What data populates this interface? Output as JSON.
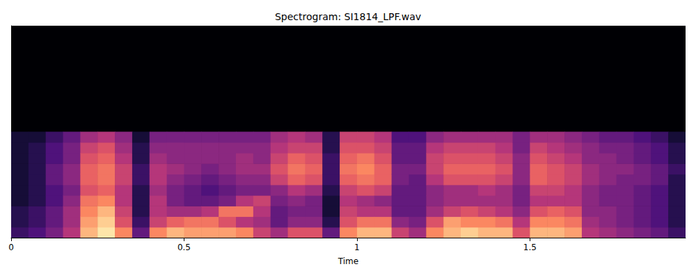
{
  "chart_data": {
    "type": "heatmap",
    "title": "Spectrogram: SI1814_LPF.wav",
    "xlabel": "Time",
    "x": [
      0,
      0.05,
      0.1,
      0.15,
      0.2,
      0.25,
      0.3,
      0.35,
      0.4,
      0.45,
      0.5,
      0.55,
      0.6,
      0.65,
      0.7,
      0.75,
      0.8,
      0.85,
      0.9,
      0.95,
      1,
      1.05,
      1.1,
      1.15,
      1.2,
      1.25,
      1.3,
      1.35,
      1.4,
      1.45,
      1.5,
      1.55,
      1.6,
      1.65,
      1.7,
      1.75,
      1.8,
      1.85,
      1.9,
      1.95
    ],
    "y": [
      0,
      1,
      2,
      3,
      4,
      5,
      6,
      7,
      8,
      9,
      10
    ],
    "z": [
      [
        0.2,
        0.15,
        0.15,
        0.1,
        0.1,
        0.1,
        0.1,
        0.1,
        0.1,
        0.1
      ],
      [
        0.25,
        0.2,
        0.2,
        0.15,
        0.15,
        0.15,
        0.15,
        0.15,
        0.15,
        0.1
      ],
      [
        0.35,
        0.3,
        0.3,
        0.25,
        0.25,
        0.3,
        0.3,
        0.25,
        0.25,
        0.2
      ],
      [
        0.5,
        0.45,
        0.45,
        0.4,
        0.35,
        0.4,
        0.4,
        0.35,
        0.35,
        0.3
      ],
      [
        0.85,
        0.8,
        0.75,
        0.7,
        0.6,
        0.65,
        0.65,
        0.6,
        0.55,
        0.45
      ],
      [
        0.95,
        0.9,
        0.85,
        0.75,
        0.65,
        0.7,
        0.7,
        0.65,
        0.6,
        0.5
      ],
      [
        0.75,
        0.6,
        0.55,
        0.5,
        0.5,
        0.55,
        0.55,
        0.5,
        0.45,
        0.4
      ],
      [
        0.3,
        0.2,
        0.15,
        0.15,
        0.15,
        0.2,
        0.2,
        0.15,
        0.15,
        0.1
      ],
      [
        0.75,
        0.55,
        0.5,
        0.5,
        0.45,
        0.5,
        0.5,
        0.45,
        0.4,
        0.35
      ],
      [
        0.85,
        0.65,
        0.45,
        0.35,
        0.35,
        0.4,
        0.45,
        0.4,
        0.4,
        0.35
      ],
      [
        0.8,
        0.7,
        0.45,
        0.3,
        0.3,
        0.35,
        0.4,
        0.4,
        0.4,
        0.35
      ],
      [
        0.8,
        0.7,
        0.5,
        0.3,
        0.25,
        0.3,
        0.35,
        0.4,
        0.4,
        0.35
      ],
      [
        0.8,
        0.6,
        0.7,
        0.35,
        0.3,
        0.35,
        0.4,
        0.4,
        0.4,
        0.35
      ],
      [
        0.75,
        0.5,
        0.7,
        0.5,
        0.35,
        0.4,
        0.45,
        0.45,
        0.4,
        0.35
      ],
      [
        0.55,
        0.45,
        0.5,
        0.55,
        0.35,
        0.4,
        0.45,
        0.4,
        0.4,
        0.35
      ],
      [
        0.45,
        0.3,
        0.3,
        0.35,
        0.4,
        0.55,
        0.6,
        0.55,
        0.5,
        0.45
      ],
      [
        0.6,
        0.4,
        0.35,
        0.4,
        0.5,
        0.65,
        0.7,
        0.65,
        0.55,
        0.5
      ],
      [
        0.6,
        0.4,
        0.35,
        0.35,
        0.45,
        0.6,
        0.65,
        0.6,
        0.55,
        0.45
      ],
      [
        0.3,
        0.15,
        0.1,
        0.1,
        0.15,
        0.2,
        0.2,
        0.2,
        0.15,
        0.15
      ],
      [
        0.75,
        0.6,
        0.55,
        0.5,
        0.55,
        0.65,
        0.7,
        0.65,
        0.6,
        0.55
      ],
      [
        0.85,
        0.7,
        0.5,
        0.45,
        0.6,
        0.7,
        0.75,
        0.7,
        0.6,
        0.55
      ],
      [
        0.85,
        0.7,
        0.5,
        0.4,
        0.55,
        0.65,
        0.65,
        0.6,
        0.55,
        0.5
      ],
      [
        0.55,
        0.4,
        0.3,
        0.3,
        0.3,
        0.35,
        0.35,
        0.3,
        0.3,
        0.25
      ],
      [
        0.45,
        0.35,
        0.3,
        0.3,
        0.3,
        0.3,
        0.35,
        0.3,
        0.3,
        0.25
      ],
      [
        0.75,
        0.6,
        0.45,
        0.4,
        0.4,
        0.5,
        0.55,
        0.55,
        0.5,
        0.4
      ],
      [
        0.85,
        0.8,
        0.55,
        0.45,
        0.45,
        0.6,
        0.65,
        0.6,
        0.55,
        0.45
      ],
      [
        0.9,
        0.75,
        0.6,
        0.45,
        0.45,
        0.6,
        0.65,
        0.6,
        0.55,
        0.45
      ],
      [
        0.85,
        0.75,
        0.55,
        0.45,
        0.5,
        0.6,
        0.65,
        0.6,
        0.55,
        0.45
      ],
      [
        0.85,
        0.7,
        0.5,
        0.45,
        0.45,
        0.55,
        0.6,
        0.55,
        0.5,
        0.45
      ],
      [
        0.6,
        0.5,
        0.4,
        0.35,
        0.35,
        0.4,
        0.4,
        0.4,
        0.35,
        0.35
      ],
      [
        0.85,
        0.75,
        0.6,
        0.5,
        0.55,
        0.65,
        0.65,
        0.6,
        0.55,
        0.45
      ],
      [
        0.85,
        0.75,
        0.65,
        0.5,
        0.55,
        0.6,
        0.6,
        0.55,
        0.5,
        0.45
      ],
      [
        0.8,
        0.7,
        0.6,
        0.5,
        0.5,
        0.55,
        0.55,
        0.5,
        0.45,
        0.4
      ],
      [
        0.5,
        0.45,
        0.4,
        0.4,
        0.4,
        0.45,
        0.45,
        0.4,
        0.4,
        0.35
      ],
      [
        0.45,
        0.4,
        0.4,
        0.35,
        0.35,
        0.4,
        0.4,
        0.4,
        0.35,
        0.3
      ],
      [
        0.4,
        0.35,
        0.35,
        0.35,
        0.35,
        0.35,
        0.4,
        0.35,
        0.35,
        0.3
      ],
      [
        0.35,
        0.3,
        0.3,
        0.3,
        0.3,
        0.35,
        0.35,
        0.3,
        0.3,
        0.25
      ],
      [
        0.3,
        0.25,
        0.25,
        0.25,
        0.25,
        0.3,
        0.3,
        0.25,
        0.25,
        0.2
      ],
      [
        0.2,
        0.15,
        0.15,
        0.15,
        0.15,
        0.15,
        0.2,
        0.15,
        0.15,
        0.1
      ]
    ],
    "xlim": [
      0,
      1.95
    ],
    "xticks": [
      0,
      0.5,
      1,
      1.5
    ],
    "ylim": [
      0,
      20
    ],
    "zlim": [
      0,
      1
    ],
    "tick_labels": "x"
  }
}
